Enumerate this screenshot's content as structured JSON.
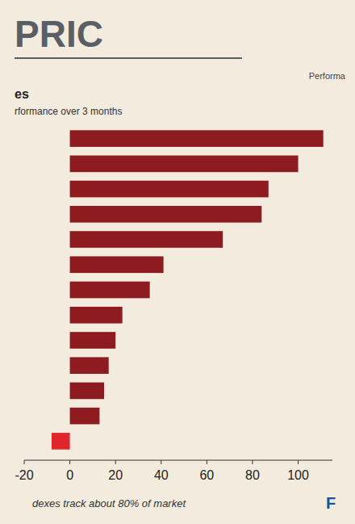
{
  "chart_data": {
    "type": "bar",
    "orientation": "horizontal",
    "title": "es",
    "subtitle": "rformance over 3 months",
    "annotations": [
      "PRIC",
      "Performa",
      "dexes track about 80% of market",
      "F"
    ],
    "categories": [
      null,
      null,
      null,
      null,
      null,
      null,
      null,
      null,
      null,
      null,
      null,
      null,
      null
    ],
    "values": [
      111,
      100,
      87,
      84,
      67,
      41,
      35,
      23,
      20,
      17,
      15,
      13,
      -8
    ],
    "colors": [
      "#8e1b1f",
      "#8e1b1f",
      "#8e1b1f",
      "#8e1b1f",
      "#8e1b1f",
      "#8e1b1f",
      "#8e1b1f",
      "#8e1b1f",
      "#8e1b1f",
      "#8e1b1f",
      "#8e1b1f",
      "#8e1b1f",
      "#e0262a"
    ],
    "xlim": [
      -20,
      115
    ],
    "xticks": [
      -20,
      0,
      20,
      40,
      60,
      80,
      100
    ],
    "grid": false,
    "tick_labels": "x"
  }
}
